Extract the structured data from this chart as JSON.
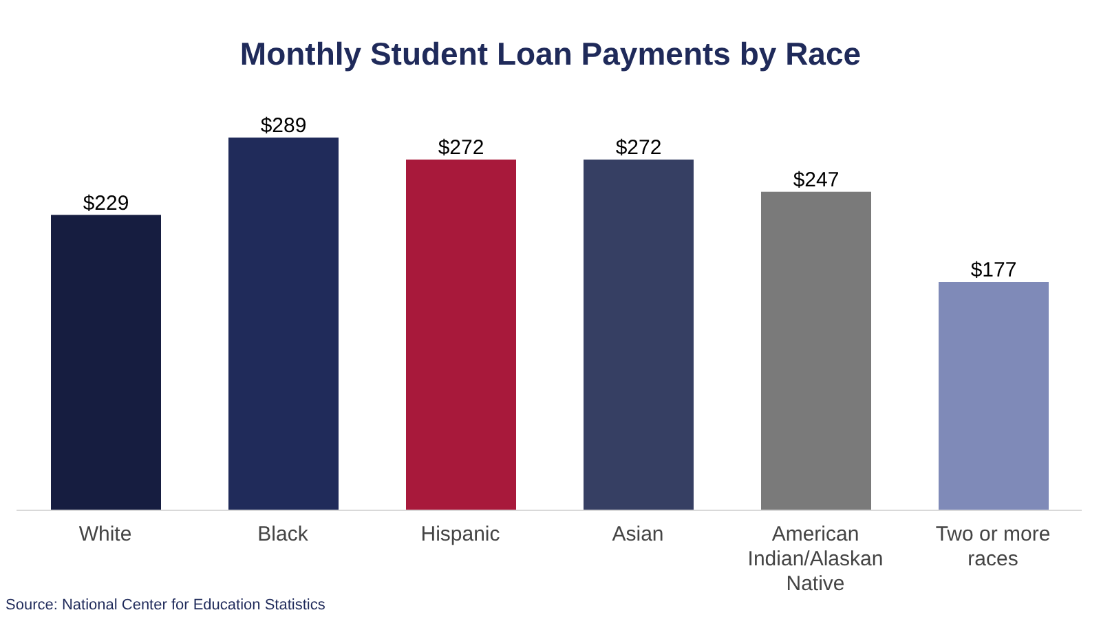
{
  "chart_data": {
    "type": "bar",
    "title": "Monthly Student Loan Payments by Race",
    "categories": [
      "White",
      "Black",
      "Hispanic",
      "Asian",
      "American Indian/Alaskan Native",
      "Two or more races"
    ],
    "values": [
      229,
      289,
      272,
      272,
      247,
      177
    ],
    "colors": [
      "#161d40",
      "#202b5a",
      "#a8193b",
      "#363f63",
      "#7a7a7a",
      "#7f8ab8"
    ],
    "value_labels": [
      "$229",
      "$289",
      "$272",
      "$272",
      "$247",
      "$177"
    ],
    "annotations": [
      "Source: National Center for Education Statistics"
    ]
  }
}
